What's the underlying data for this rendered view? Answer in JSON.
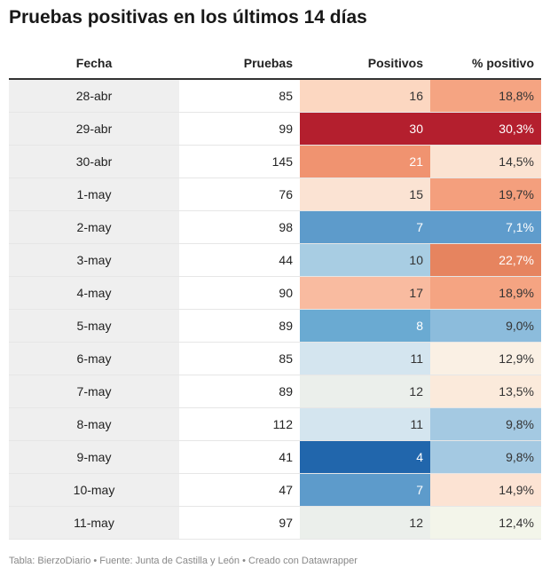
{
  "title": "Pruebas positivas en los últimos 14 días",
  "footer": "Tabla: BierzoDiario • Fuente: Junta de Castilla y León • Creado con Datawrapper",
  "chart_data": {
    "type": "table",
    "columns": [
      "Fecha",
      "Pruebas",
      "Positivos",
      "% positivo"
    ],
    "rows": [
      {
        "fecha": "28-abr",
        "pruebas": "85",
        "positivos": "16",
        "pct": "18,8%",
        "pos_bg": "#fcd7c1",
        "pos_fg": "#333333",
        "pct_bg": "#f5a482",
        "pct_fg": "#333333"
      },
      {
        "fecha": "29-abr",
        "pruebas": "99",
        "positivos": "30",
        "pct": "30,3%",
        "pos_bg": "#b41f2e",
        "pos_fg": "#ffffff",
        "pct_bg": "#b41f2e",
        "pct_fg": "#ffffff"
      },
      {
        "fecha": "30-abr",
        "pruebas": "145",
        "positivos": "21",
        "pct": "14,5%",
        "pos_bg": "#f09370",
        "pos_fg": "#ffffff",
        "pct_bg": "#fbe3d2",
        "pct_fg": "#333333"
      },
      {
        "fecha": "1-may",
        "pruebas": "76",
        "positivos": "15",
        "pct": "19,7%",
        "pos_bg": "#fbe3d3",
        "pos_fg": "#333333",
        "pct_bg": "#f49f7d",
        "pct_fg": "#333333"
      },
      {
        "fecha": "2-may",
        "pruebas": "98",
        "positivos": "7",
        "pct": "7,1%",
        "pos_bg": "#5d9bcb",
        "pos_fg": "#ffffff",
        "pct_bg": "#5f9ccc",
        "pct_fg": "#ffffff"
      },
      {
        "fecha": "3-may",
        "pruebas": "44",
        "positivos": "10",
        "pct": "22,7%",
        "pos_bg": "#a8cde3",
        "pos_fg": "#333333",
        "pct_bg": "#e6845f",
        "pct_fg": "#ffffff"
      },
      {
        "fecha": "4-may",
        "pruebas": "90",
        "positivos": "17",
        "pct": "18,9%",
        "pos_bg": "#f9bba0",
        "pos_fg": "#333333",
        "pct_bg": "#f5a482",
        "pct_fg": "#333333"
      },
      {
        "fecha": "5-may",
        "pruebas": "89",
        "positivos": "8",
        "pct": "9,0%",
        "pos_bg": "#6aaad2",
        "pos_fg": "#ffffff",
        "pct_bg": "#8cbcdc",
        "pct_fg": "#333333"
      },
      {
        "fecha": "6-may",
        "pruebas": "85",
        "positivos": "11",
        "pct": "12,9%",
        "pos_bg": "#d4e5ef",
        "pos_fg": "#333333",
        "pct_bg": "#faf0e4",
        "pct_fg": "#333333"
      },
      {
        "fecha": "7-may",
        "pruebas": "89",
        "positivos": "12",
        "pct": "13,5%",
        "pos_bg": "#ebefeb",
        "pos_fg": "#333333",
        "pct_bg": "#fbeadb",
        "pct_fg": "#333333"
      },
      {
        "fecha": "8-may",
        "pruebas": "112",
        "positivos": "11",
        "pct": "9,8%",
        "pos_bg": "#d4e5ef",
        "pos_fg": "#333333",
        "pct_bg": "#a4c9e2",
        "pct_fg": "#333333"
      },
      {
        "fecha": "9-may",
        "pruebas": "41",
        "positivos": "4",
        "pct": "9,8%",
        "pos_bg": "#2166ac",
        "pos_fg": "#ffffff",
        "pct_bg": "#a4c9e2",
        "pct_fg": "#333333"
      },
      {
        "fecha": "10-may",
        "pruebas": "47",
        "positivos": "7",
        "pct": "14,9%",
        "pos_bg": "#5d9bcb",
        "pos_fg": "#ffffff",
        "pct_bg": "#fce3d3",
        "pct_fg": "#333333"
      },
      {
        "fecha": "11-may",
        "pruebas": "97",
        "positivos": "12",
        "pct": "12,4%",
        "pos_bg": "#ebefeb",
        "pos_fg": "#333333",
        "pct_bg": "#f3f5ea",
        "pct_fg": "#333333"
      }
    ]
  }
}
